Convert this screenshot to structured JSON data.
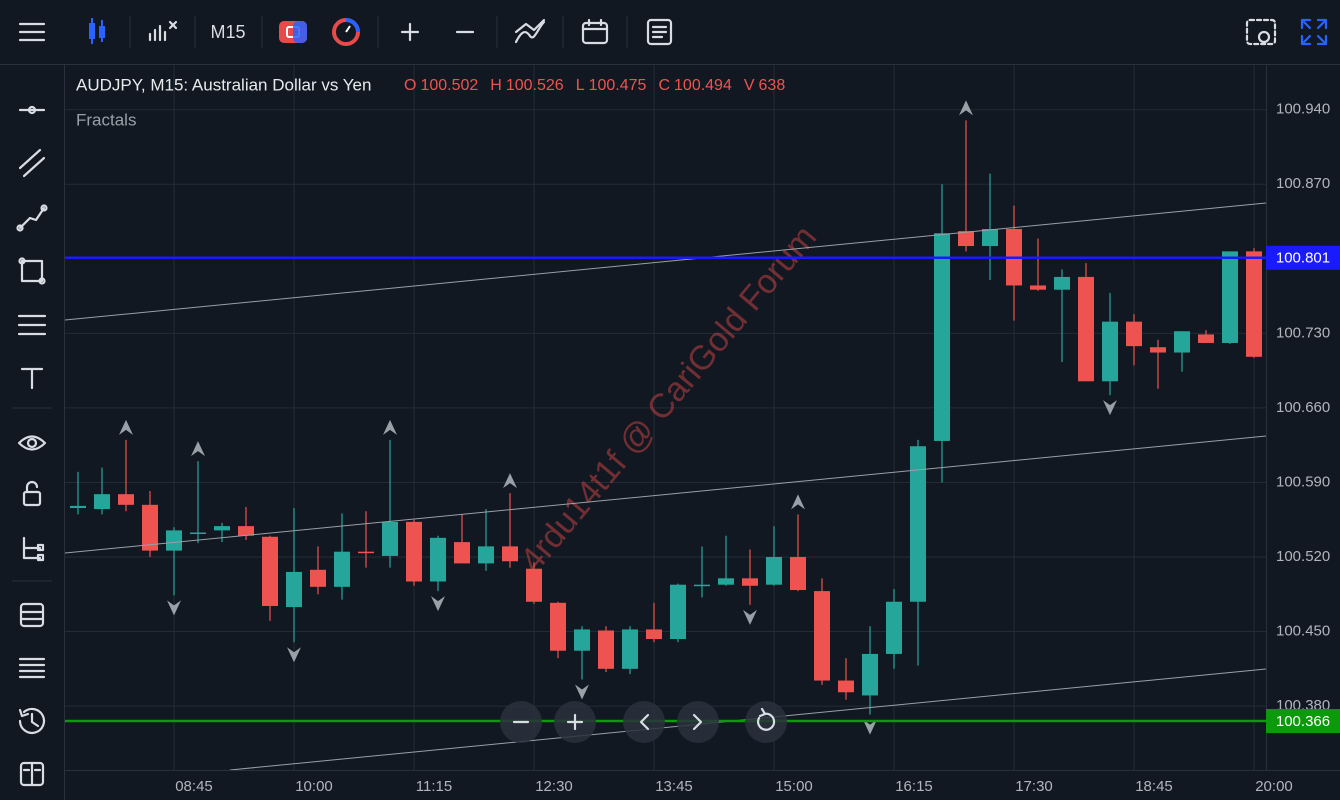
{
  "toolbar": {
    "timeframe": "M15"
  },
  "chart_data": {
    "type": "candlestick",
    "title": "AUDJPY, M15: Australian Dollar vs Yen",
    "indicator": "Fractals",
    "watermark": "4rdu14t1f @ CariGold Forum",
    "ohlc": [
      {
        "label": "O",
        "value": 100.502
      },
      {
        "label": "H",
        "value": 100.526
      },
      {
        "label": "L",
        "value": 100.475
      },
      {
        "label": "C",
        "value": 100.494
      },
      {
        "label": "V",
        "value": 638
      }
    ],
    "categories": [
      null,
      null,
      null,
      null,
      "08:45",
      null,
      null,
      null,
      null,
      "10:00",
      null,
      null,
      null,
      null,
      "11:15",
      null,
      null,
      null,
      null,
      "12:30",
      null,
      null,
      null,
      null,
      "13:45",
      null,
      null,
      null,
      null,
      "15:00",
      null,
      null,
      null,
      null,
      "16:15",
      null,
      null,
      null,
      null,
      "17:30",
      null,
      null,
      null,
      null,
      "18:45",
      null,
      null,
      null,
      null,
      "20:00"
    ],
    "open": [
      100.566,
      100.565,
      100.579,
      100.569,
      100.526,
      100.543,
      100.545,
      100.549,
      100.539,
      100.473,
      100.508,
      100.492,
      100.525,
      100.521,
      100.553,
      100.497,
      100.534,
      100.514,
      100.53,
      100.509,
      100.477,
      100.432,
      100.451,
      100.415,
      100.452,
      100.443,
      100.494,
      100.494,
      100.5,
      100.494,
      100.52,
      100.488,
      100.404,
      100.39,
      100.429,
      100.478,
      100.629,
      100.826,
      100.812,
      100.828,
      100.775,
      100.771,
      100.783,
      100.685,
      100.741,
      100.717,
      100.712,
      100.729,
      100.721,
      100.807
    ],
    "high": [
      100.6,
      100.604,
      100.63,
      100.582,
      100.548,
      100.61,
      100.552,
      100.567,
      100.54,
      100.566,
      100.53,
      100.561,
      100.563,
      100.63,
      100.555,
      100.54,
      100.56,
      100.565,
      100.58,
      100.515,
      100.478,
      100.455,
      100.455,
      100.455,
      100.477,
      100.495,
      100.53,
      100.54,
      100.527,
      100.549,
      100.56,
      100.5,
      100.425,
      100.455,
      100.49,
      100.63,
      100.87,
      100.93,
      100.88,
      100.85,
      100.819,
      100.79,
      100.796,
      100.768,
      100.748,
      100.724,
      100.732,
      100.733,
      100.807,
      100.81
    ],
    "low": [
      100.56,
      100.56,
      100.563,
      100.52,
      100.484,
      100.533,
      100.534,
      100.536,
      100.46,
      100.44,
      100.485,
      100.48,
      100.51,
      100.51,
      100.493,
      100.488,
      100.514,
      100.507,
      100.51,
      100.476,
      100.425,
      100.405,
      100.412,
      100.41,
      100.44,
      100.44,
      100.482,
      100.493,
      100.475,
      100.493,
      100.488,
      100.4,
      100.386,
      100.372,
      100.415,
      100.418,
      100.59,
      100.807,
      100.78,
      100.742,
      100.77,
      100.703,
      100.685,
      100.672,
      100.7,
      100.678,
      100.694,
      100.721,
      100.72,
      100.707
    ],
    "close": [
      100.568,
      100.579,
      100.569,
      100.526,
      100.545,
      100.543,
      100.549,
      100.54,
      100.474,
      100.506,
      100.492,
      100.525,
      100.524,
      100.553,
      100.497,
      100.538,
      100.514,
      100.53,
      100.516,
      100.478,
      100.432,
      100.452,
      100.415,
      100.452,
      100.443,
      100.494,
      100.494,
      100.5,
      100.493,
      100.52,
      100.489,
      100.404,
      100.393,
      100.429,
      100.478,
      100.624,
      100.824,
      100.812,
      100.828,
      100.775,
      100.771,
      100.783,
      100.685,
      100.741,
      100.718,
      100.712,
      100.732,
      100.721,
      100.807,
      100.708
    ],
    "up_color": "#26a69a",
    "down_color": "#ef5350",
    "ylim": [
      100.32,
      100.982
    ],
    "yticks": [
      {
        "value": 100.94,
        "label": "100.940"
      },
      {
        "value": 100.87,
        "label": "100.870"
      },
      {
        "value": 100.73,
        "label": "100.730"
      },
      {
        "value": 100.66,
        "label": "100.660"
      },
      {
        "value": 100.59,
        "label": "100.590"
      },
      {
        "value": 100.52,
        "label": "100.520"
      },
      {
        "value": 100.45,
        "label": "100.450"
      },
      {
        "value": 100.38,
        "label": "100.380"
      }
    ],
    "hlines": [
      {
        "value": 100.801,
        "color": "#1a1aff"
      },
      {
        "value": 100.366,
        "color": "#0a9a0a"
      }
    ],
    "grid": true
  }
}
